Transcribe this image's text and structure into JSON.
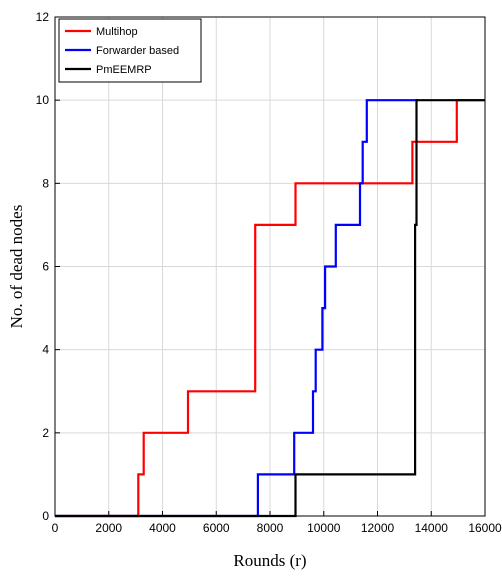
{
  "chart_data": {
    "type": "line",
    "xlabel": "Rounds (r)",
    "ylabel": "No. of dead nodes",
    "xlim": [
      0,
      16000
    ],
    "ylim": [
      0,
      12
    ],
    "xticks": [
      0,
      2000,
      4000,
      6000,
      8000,
      10000,
      12000,
      14000,
      16000
    ],
    "yticks": [
      0,
      2,
      4,
      6,
      8,
      10,
      12
    ],
    "grid": true,
    "legend_position": "top-left",
    "step": true,
    "series": [
      {
        "name": "Multihop",
        "color": "#ff0000",
        "points": [
          [
            0,
            0
          ],
          [
            3100,
            0
          ],
          [
            3100,
            1
          ],
          [
            3300,
            1
          ],
          [
            3300,
            2
          ],
          [
            4950,
            2
          ],
          [
            4950,
            3
          ],
          [
            7450,
            3
          ],
          [
            7450,
            7
          ],
          [
            8950,
            7
          ],
          [
            8950,
            8
          ],
          [
            13300,
            8
          ],
          [
            13300,
            9
          ],
          [
            14950,
            9
          ],
          [
            14950,
            10
          ],
          [
            16000,
            10
          ]
        ]
      },
      {
        "name": "Forwarder based",
        "color": "#0000ff",
        "points": [
          [
            0,
            0
          ],
          [
            7550,
            0
          ],
          [
            7550,
            1
          ],
          [
            8900,
            1
          ],
          [
            8900,
            2
          ],
          [
            9600,
            2
          ],
          [
            9600,
            3
          ],
          [
            9700,
            3
          ],
          [
            9700,
            4
          ],
          [
            9950,
            4
          ],
          [
            9950,
            5
          ],
          [
            10050,
            5
          ],
          [
            10050,
            6
          ],
          [
            10450,
            6
          ],
          [
            10450,
            7
          ],
          [
            11350,
            7
          ],
          [
            11350,
            8
          ],
          [
            11450,
            8
          ],
          [
            11450,
            9
          ],
          [
            11600,
            9
          ],
          [
            11600,
            10
          ],
          [
            13500,
            10
          ]
        ]
      },
      {
        "name": "PmEEMRP",
        "color": "#000000",
        "points": [
          [
            0,
            0
          ],
          [
            8950,
            0
          ],
          [
            8950,
            1
          ],
          [
            13400,
            1
          ],
          [
            13400,
            7
          ],
          [
            13450,
            7
          ],
          [
            13450,
            10
          ],
          [
            16000,
            10
          ]
        ]
      }
    ]
  }
}
